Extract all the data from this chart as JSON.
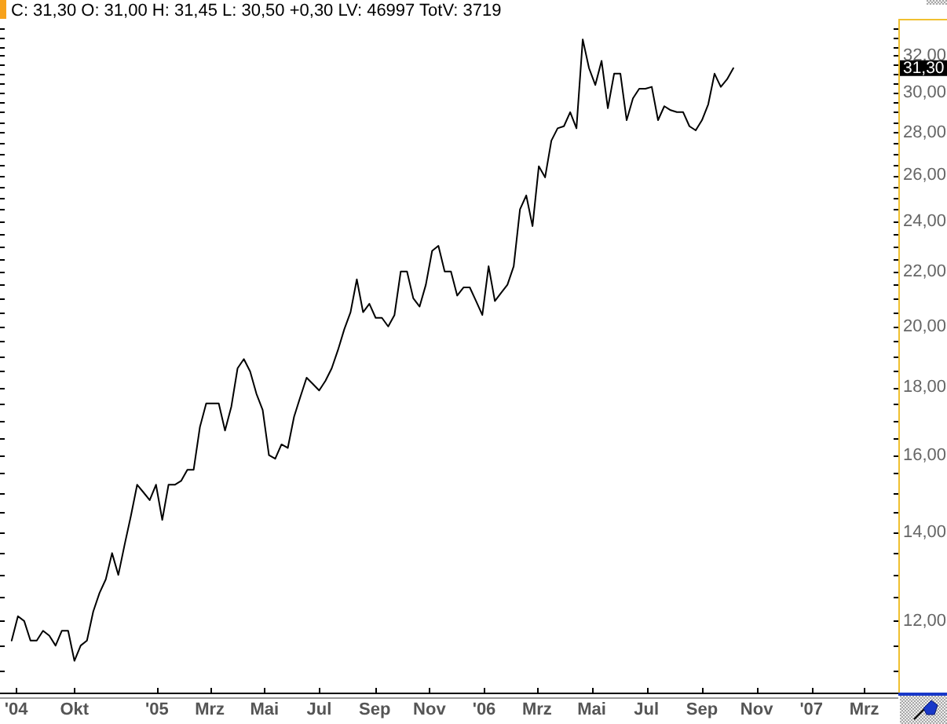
{
  "chart_data": {
    "type": "line",
    "title": "C: 31,30 O: 31,00 H: 31,45 L: 30,50 +0,30 LV: 46997 TotV: 3719",
    "x": [
      "2004-07-23",
      "2004-07-30",
      "2004-08-06",
      "2004-08-13",
      "2004-08-20",
      "2004-08-27",
      "2004-09-03",
      "2004-09-10",
      "2004-09-17",
      "2004-09-24",
      "2004-10-01",
      "2004-10-08",
      "2004-10-15",
      "2004-10-22",
      "2004-10-29",
      "2004-11-05",
      "2004-11-12",
      "2004-11-19",
      "2004-11-26",
      "2004-12-03",
      "2004-12-10",
      "2004-12-17",
      "2004-12-24",
      "2004-12-31",
      "2005-01-07",
      "2005-01-14",
      "2005-01-21",
      "2005-01-28",
      "2005-02-04",
      "2005-02-11",
      "2005-02-18",
      "2005-02-25",
      "2005-03-04",
      "2005-03-11",
      "2005-03-18",
      "2005-03-25",
      "2005-04-01",
      "2005-04-08",
      "2005-04-15",
      "2005-04-22",
      "2005-04-29",
      "2005-05-06",
      "2005-05-13",
      "2005-05-20",
      "2005-05-27",
      "2005-06-03",
      "2005-06-10",
      "2005-06-17",
      "2005-06-24",
      "2005-07-01",
      "2005-07-08",
      "2005-07-15",
      "2005-07-22",
      "2005-07-29",
      "2005-08-05",
      "2005-08-12",
      "2005-08-19",
      "2005-08-26",
      "2005-09-02",
      "2005-09-09",
      "2005-09-16",
      "2005-09-23",
      "2005-09-30",
      "2005-10-07",
      "2005-10-14",
      "2005-10-21",
      "2005-10-28",
      "2005-11-04",
      "2005-11-11",
      "2005-11-18",
      "2005-11-25",
      "2005-12-02",
      "2005-12-09",
      "2005-12-16",
      "2005-12-23",
      "2005-12-30",
      "2006-01-06",
      "2006-01-13",
      "2006-01-20",
      "2006-01-27",
      "2006-02-03",
      "2006-02-10",
      "2006-02-17",
      "2006-02-24",
      "2006-03-03",
      "2006-03-10",
      "2006-03-17",
      "2006-03-24",
      "2006-03-31",
      "2006-04-07",
      "2006-04-14",
      "2006-04-21",
      "2006-04-28",
      "2006-05-05",
      "2006-05-12",
      "2006-05-19",
      "2006-05-26",
      "2006-06-02",
      "2006-06-09",
      "2006-06-16",
      "2006-06-23",
      "2006-06-30",
      "2006-07-07",
      "2006-07-14",
      "2006-07-21",
      "2006-07-28",
      "2006-08-04",
      "2006-08-11",
      "2006-08-18",
      "2006-08-25",
      "2006-09-01",
      "2006-09-08",
      "2006-09-15",
      "2006-09-22",
      "2006-09-29",
      "2006-10-06"
    ],
    "values": [
      11.6,
      12.1,
      12.0,
      11.6,
      11.6,
      11.8,
      11.7,
      11.5,
      11.8,
      11.8,
      11.2,
      11.5,
      11.6,
      12.2,
      12.6,
      12.9,
      13.5,
      13.0,
      13.7,
      14.4,
      15.2,
      15.0,
      14.8,
      15.2,
      14.3,
      15.2,
      15.2,
      15.3,
      15.6,
      15.6,
      16.8,
      17.5,
      17.5,
      17.5,
      16.7,
      17.4,
      18.6,
      18.9,
      18.5,
      17.8,
      17.3,
      16.0,
      15.9,
      16.3,
      16.2,
      17.1,
      17.7,
      18.3,
      18.1,
      17.9,
      18.2,
      18.6,
      19.2,
      19.9,
      20.5,
      21.7,
      20.5,
      20.8,
      20.3,
      20.3,
      20.0,
      20.4,
      22.0,
      22.0,
      21.0,
      20.7,
      21.5,
      22.8,
      23.0,
      22.0,
      22.0,
      21.1,
      21.4,
      21.4,
      20.9,
      20.4,
      22.2,
      20.9,
      21.2,
      21.5,
      22.2,
      24.5,
      25.1,
      23.8,
      26.4,
      25.9,
      27.6,
      28.2,
      28.3,
      29.0,
      28.2,
      32.9,
      31.3,
      30.4,
      31.7,
      29.2,
      31.0,
      31.0,
      28.6,
      29.7,
      30.2,
      30.2,
      30.3,
      28.6,
      29.3,
      29.1,
      29.0,
      29.0,
      28.3,
      28.1,
      28.6,
      29.4,
      31.0,
      30.3,
      30.7,
      31.3
    ],
    "color": "#000000",
    "log": true,
    "xlim": [
      "2004-07-10",
      "2007-04-08"
    ],
    "xticks": [
      {
        "value": "2004-07-28",
        "label": "'04"
      },
      {
        "value": "2004-10-01",
        "label": "Okt"
      },
      {
        "value": "2005-01-01",
        "label": "'05"
      },
      {
        "value": "2005-03-01",
        "label": "Mrz"
      },
      {
        "value": "2005-05-01",
        "label": "Mai"
      },
      {
        "value": "2005-07-01",
        "label": "Jul"
      },
      {
        "value": "2005-09-01",
        "label": "Sep"
      },
      {
        "value": "2005-11-01",
        "label": "Nov"
      },
      {
        "value": "2006-01-01",
        "label": "'06"
      },
      {
        "value": "2006-03-01",
        "label": "Mrz"
      },
      {
        "value": "2006-05-01",
        "label": "Mai"
      },
      {
        "value": "2006-07-01",
        "label": "Jul"
      },
      {
        "value": "2006-09-01",
        "label": "Sep"
      },
      {
        "value": "2006-11-01",
        "label": "Nov"
      },
      {
        "value": "2007-01-01",
        "label": "'07"
      },
      {
        "value": "2007-03-01",
        "label": "Mrz"
      }
    ],
    "ylim": [
      10.6,
      34
    ],
    "yticks": [
      {
        "value": 11,
        "label": null
      },
      {
        "value": 11.5,
        "label": null
      },
      {
        "value": 12,
        "label": "12,00"
      },
      {
        "value": 12.5,
        "label": null
      },
      {
        "value": 13,
        "label": null
      },
      {
        "value": 13.5,
        "label": null
      },
      {
        "value": 14,
        "label": "14,00"
      },
      {
        "value": 14.5,
        "label": null
      },
      {
        "value": 15,
        "label": null
      },
      {
        "value": 15.5,
        "label": null
      },
      {
        "value": 16,
        "label": "16,00"
      },
      {
        "value": 16.5,
        "label": null
      },
      {
        "value": 17,
        "label": null
      },
      {
        "value": 17.5,
        "label": null
      },
      {
        "value": 18,
        "label": "18,00"
      },
      {
        "value": 18.5,
        "label": null
      },
      {
        "value": 19,
        "label": null
      },
      {
        "value": 19.5,
        "label": null
      },
      {
        "value": 20,
        "label": "20,00"
      },
      {
        "value": 20.5,
        "label": null
      },
      {
        "value": 21,
        "label": null
      },
      {
        "value": 21.5,
        "label": null
      },
      {
        "value": 22,
        "label": "22,00"
      },
      {
        "value": 22.5,
        "label": null
      },
      {
        "value": 23,
        "label": null
      },
      {
        "value": 23.5,
        "label": null
      },
      {
        "value": 24,
        "label": "24,00"
      },
      {
        "value": 24.5,
        "label": null
      },
      {
        "value": 25,
        "label": null
      },
      {
        "value": 25.5,
        "label": null
      },
      {
        "value": 26,
        "label": "26,00"
      },
      {
        "value": 26.5,
        "label": null
      },
      {
        "value": 27,
        "label": null
      },
      {
        "value": 27.5,
        "label": null
      },
      {
        "value": 28,
        "label": "28,00"
      },
      {
        "value": 28.5,
        "label": null
      },
      {
        "value": 29,
        "label": null
      },
      {
        "value": 29.5,
        "label": null
      },
      {
        "value": 30,
        "label": "30,00"
      },
      {
        "value": 30.5,
        "label": null
      },
      {
        "value": 31,
        "label": null
      },
      {
        "value": 31.5,
        "label": null
      },
      {
        "value": 32,
        "label": "32,00"
      },
      {
        "value": 32.5,
        "label": null
      },
      {
        "value": 33,
        "label": null
      },
      {
        "value": 33.5,
        "label": null
      }
    ],
    "annotations": [
      {
        "text": "31,30",
        "y": 31.3
      }
    ]
  }
}
